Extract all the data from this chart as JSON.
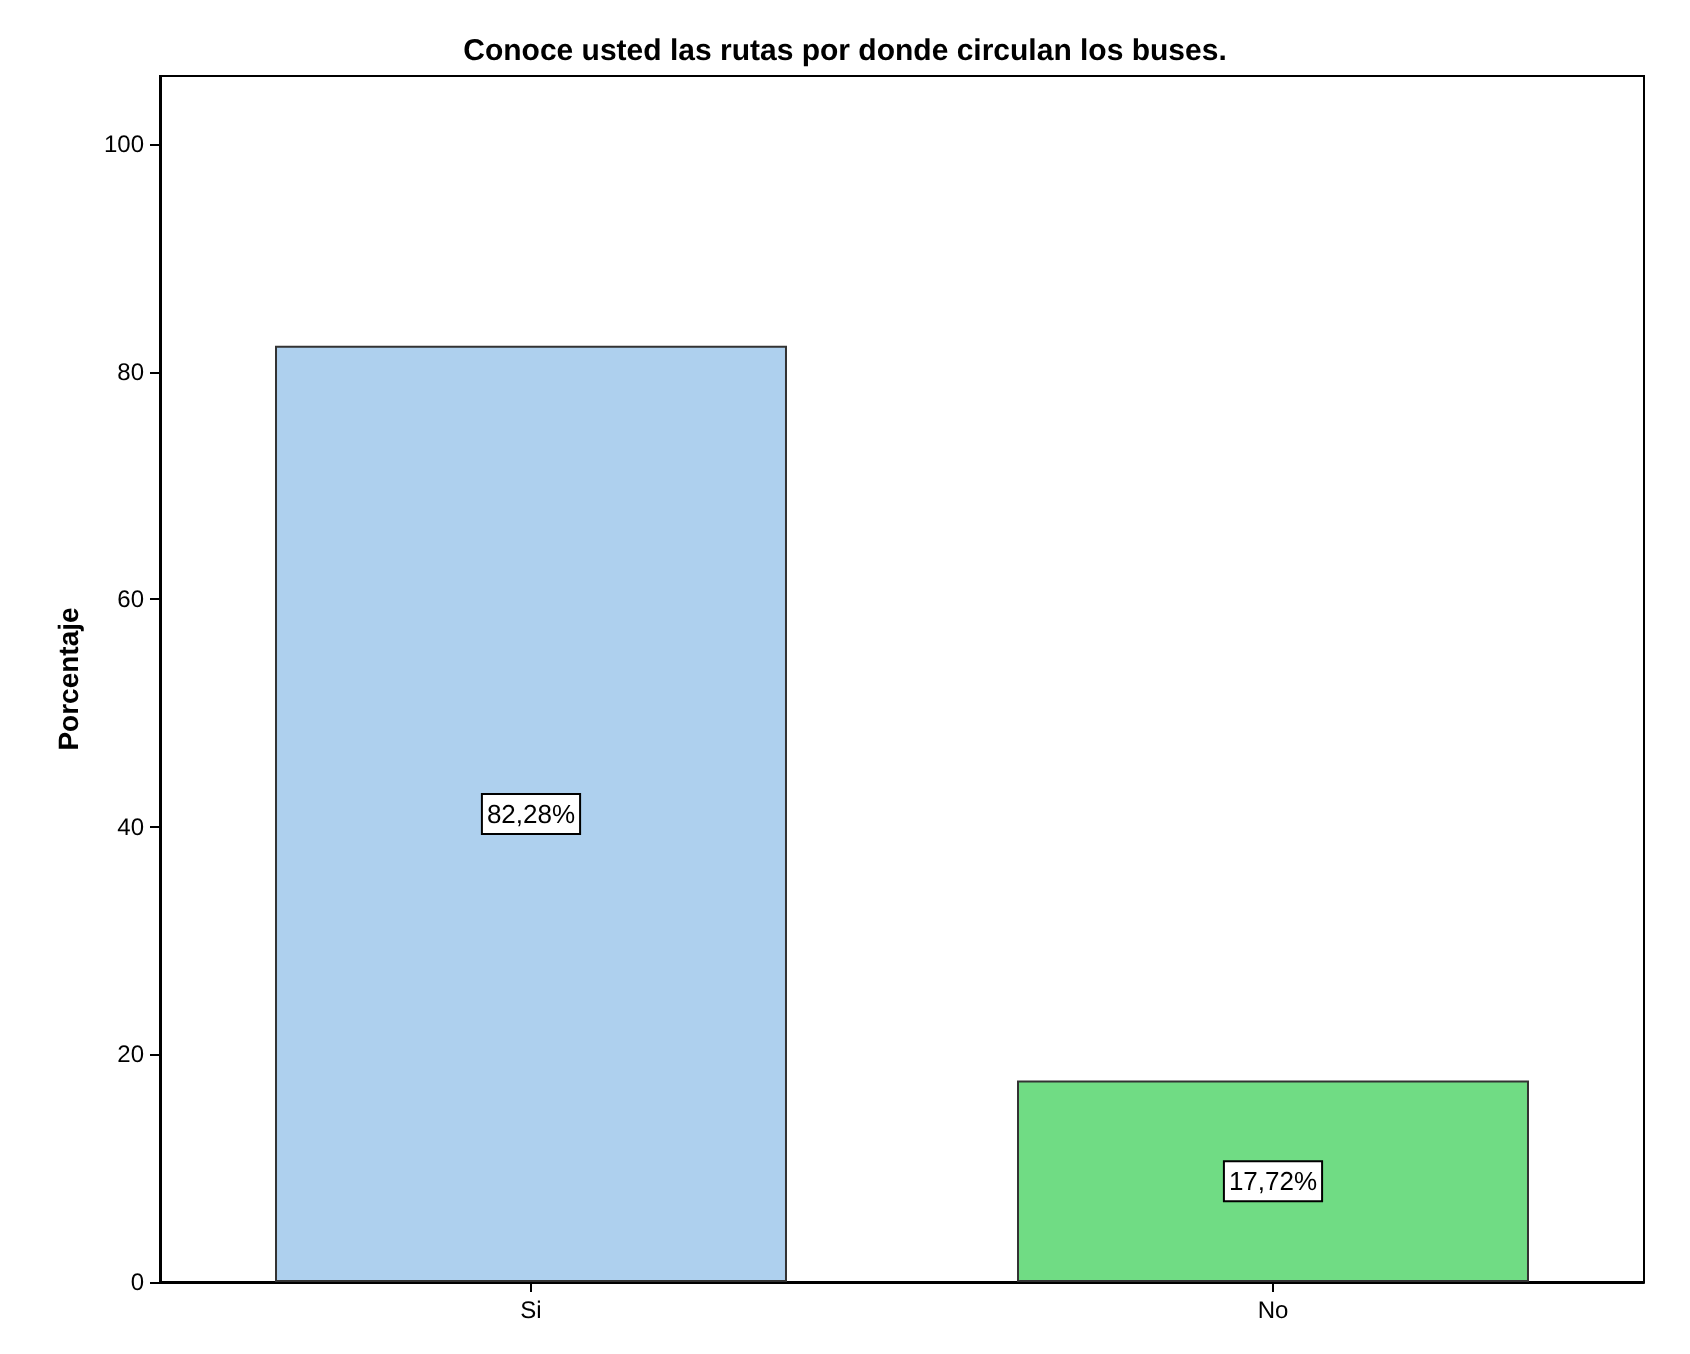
{
  "chart_data": {
    "type": "bar",
    "title": "Conoce usted las rutas por donde circulan los buses.",
    "ylabel": "Porcentaje",
    "categories": [
      "Si",
      "No"
    ],
    "values": [
      82.28,
      17.72
    ],
    "colors": [
      "#aed0ee",
      "#70dc84"
    ],
    "value_labels": [
      "82,28%",
      "17,72%"
    ],
    "ylim": [
      0,
      106
    ],
    "yticks": [
      0,
      20,
      40,
      60,
      80,
      100
    ],
    "grid": false
  }
}
